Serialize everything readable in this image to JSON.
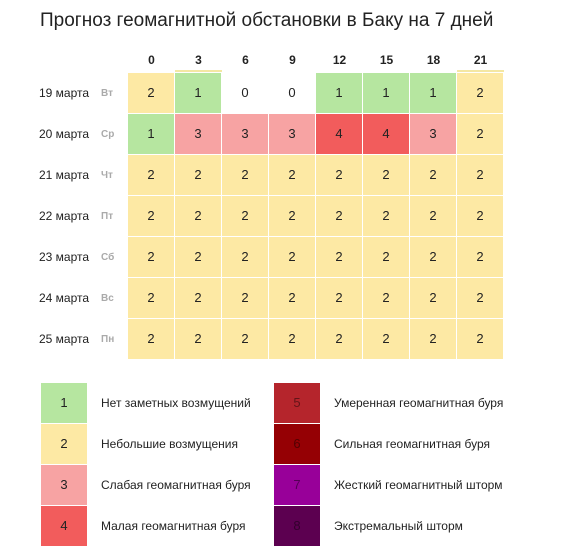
{
  "title": "Прогноз геомагнитной обстановки в Баку на 7 дней",
  "hours": [
    "0",
    "3",
    "6",
    "9",
    "12",
    "15",
    "18",
    "21"
  ],
  "rows": [
    {
      "date": "19 марта",
      "dow": "Вт",
      "values": [
        "2",
        "1",
        "0",
        "0",
        "1",
        "1",
        "1",
        "2"
      ]
    },
    {
      "date": "20 марта",
      "dow": "Ср",
      "values": [
        "1",
        "3",
        "3",
        "3",
        "4",
        "4",
        "3",
        "2"
      ]
    },
    {
      "date": "21 марта",
      "dow": "Чт",
      "values": [
        "2",
        "2",
        "2",
        "2",
        "2",
        "2",
        "2",
        "2"
      ]
    },
    {
      "date": "22 марта",
      "dow": "Пт",
      "values": [
        "2",
        "2",
        "2",
        "2",
        "2",
        "2",
        "2",
        "2"
      ]
    },
    {
      "date": "23 марта",
      "dow": "Сб",
      "values": [
        "2",
        "2",
        "2",
        "2",
        "2",
        "2",
        "2",
        "2"
      ]
    },
    {
      "date": "24 марта",
      "dow": "Вс",
      "values": [
        "2",
        "2",
        "2",
        "2",
        "2",
        "2",
        "2",
        "2"
      ]
    },
    {
      "date": "25 марта",
      "dow": "Пн",
      "values": [
        "2",
        "2",
        "2",
        "2",
        "2",
        "2",
        "2",
        "2"
      ]
    }
  ],
  "colors": {
    "level_0": "#ffffff",
    "level_1": "#b6e6a0",
    "level_2": "#fde9a4",
    "level_3": "#f7a3a3",
    "level_4": "#f25c5c",
    "level_5": "#b5252c",
    "level_6": "#950004",
    "level_7": "#980099",
    "level_8": "#5c0050"
  },
  "legend": {
    "left": [
      {
        "level": "1",
        "label": "Нет заметных возмущений"
      },
      {
        "level": "2",
        "label": "Небольшие возмущения"
      },
      {
        "level": "3",
        "label": "Слабая геомагнитная буря"
      },
      {
        "level": "4",
        "label": "Малая геомагнитная буря"
      }
    ],
    "right": [
      {
        "level": "5",
        "label": "Умеренная геомагнитная буря"
      },
      {
        "level": "6",
        "label": "Сильная геомагнитная буря"
      },
      {
        "level": "7",
        "label": "Жесткий геомагнитный шторм"
      },
      {
        "level": "8",
        "label": "Экстремальный шторм"
      }
    ]
  }
}
